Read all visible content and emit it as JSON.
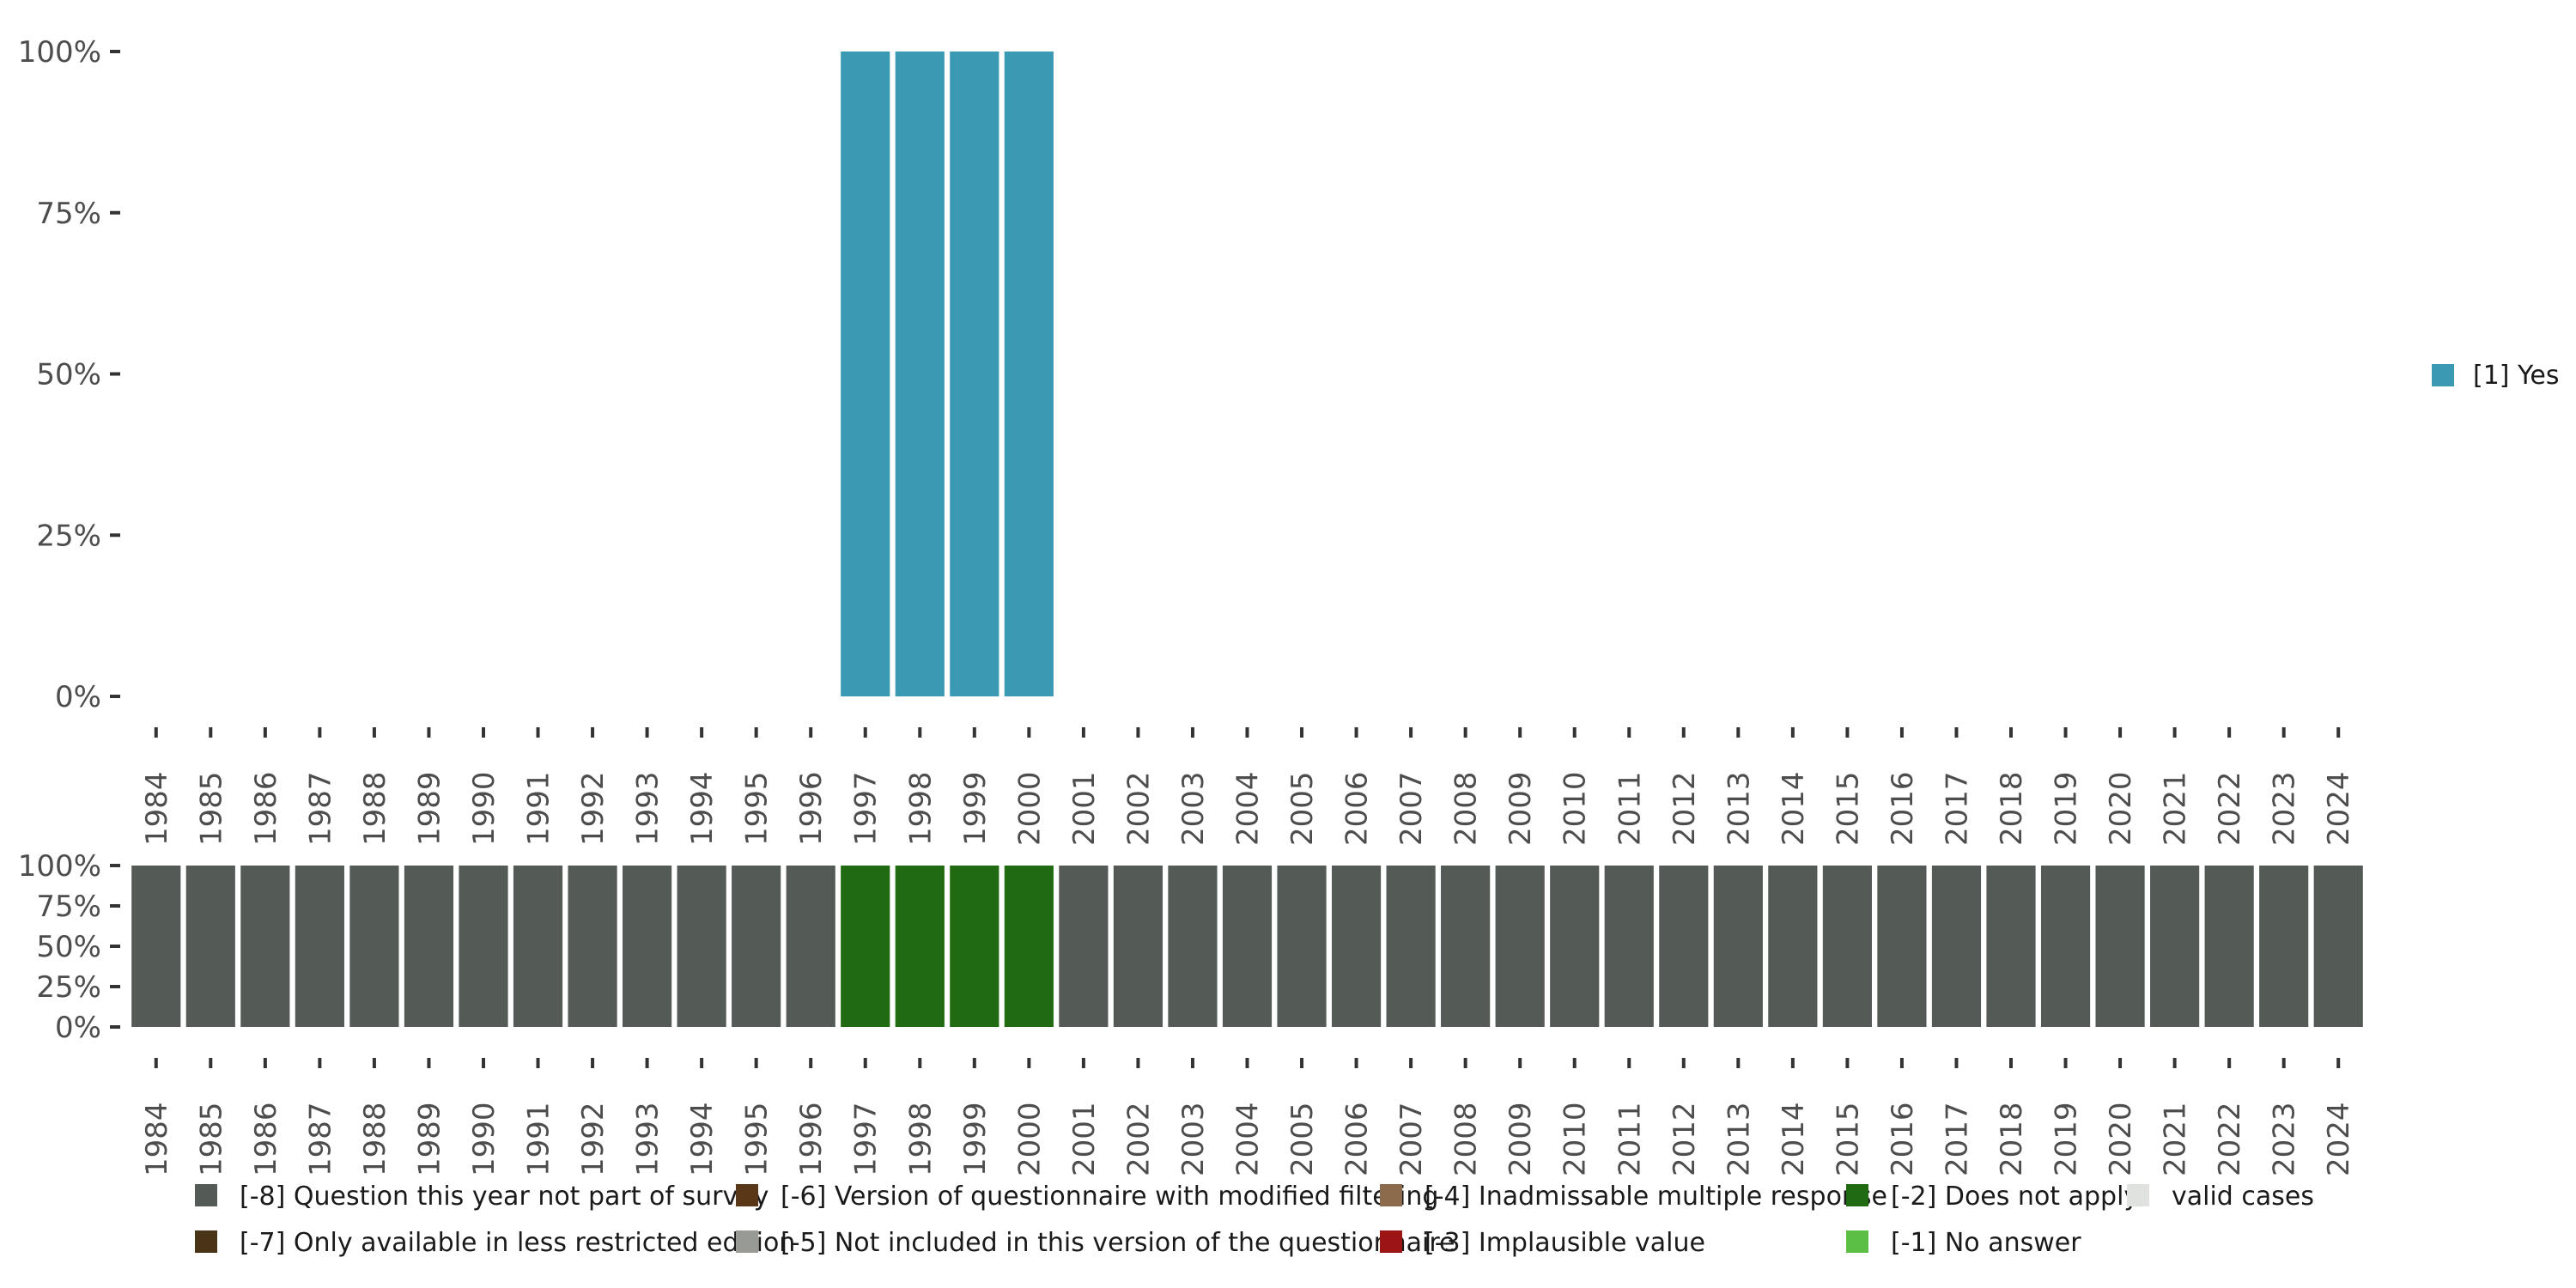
{
  "chart_data": [
    {
      "name": "response-distribution",
      "type": "bar",
      "stacked": true,
      "categories": [
        "1984",
        "1985",
        "1986",
        "1987",
        "1988",
        "1989",
        "1990",
        "1991",
        "1992",
        "1993",
        "1994",
        "1995",
        "1996",
        "1997",
        "1998",
        "1999",
        "2000",
        "2001",
        "2002",
        "2003",
        "2004",
        "2005",
        "2006",
        "2007",
        "2008",
        "2009",
        "2010",
        "2011",
        "2012",
        "2013",
        "2014",
        "2015",
        "2016",
        "2017",
        "2018",
        "2019",
        "2020",
        "2021",
        "2022",
        "2023",
        "2024"
      ],
      "series": [
        {
          "name": "[1] Yes",
          "color": "#3a9ab3",
          "values": [
            0,
            0,
            0,
            0,
            0,
            0,
            0,
            0,
            0,
            0,
            0,
            0,
            0,
            100,
            100,
            100,
            100,
            0,
            0,
            0,
            0,
            0,
            0,
            0,
            0,
            0,
            0,
            0,
            0,
            0,
            0,
            0,
            0,
            0,
            0,
            0,
            0,
            0,
            0,
            0,
            0
          ]
        }
      ],
      "ylim": [
        0,
        100
      ],
      "yticks": [
        "0%",
        "25%",
        "50%",
        "75%",
        "100%"
      ],
      "ytick_values": [
        0,
        25,
        50,
        75,
        100
      ],
      "grid": false,
      "legend": {
        "position": "right",
        "entries": [
          {
            "label": "[1] Yes",
            "color": "#3a9ab3"
          }
        ]
      }
    },
    {
      "name": "missing-values",
      "type": "bar",
      "stacked": true,
      "categories": [
        "1984",
        "1985",
        "1986",
        "1987",
        "1988",
        "1989",
        "1990",
        "1991",
        "1992",
        "1993",
        "1994",
        "1995",
        "1996",
        "1997",
        "1998",
        "1999",
        "2000",
        "2001",
        "2002",
        "2003",
        "2004",
        "2005",
        "2006",
        "2007",
        "2008",
        "2009",
        "2010",
        "2011",
        "2012",
        "2013",
        "2014",
        "2015",
        "2016",
        "2017",
        "2018",
        "2019",
        "2020",
        "2021",
        "2022",
        "2023",
        "2024"
      ],
      "series": [
        {
          "name": "[-8] Question this year not part of survey",
          "color": "#545b56",
          "values": [
            100,
            100,
            100,
            100,
            100,
            100,
            100,
            100,
            100,
            100,
            100,
            100,
            100,
            0,
            0,
            0,
            0,
            100,
            100,
            100,
            100,
            100,
            100,
            100,
            100,
            100,
            100,
            100,
            100,
            100,
            100,
            100,
            100,
            100,
            100,
            100,
            100,
            100,
            100,
            100,
            100
          ]
        },
        {
          "name": "[-2] Does not apply",
          "color": "#206b12",
          "values": [
            0,
            0,
            0,
            0,
            0,
            0,
            0,
            0,
            0,
            0,
            0,
            0,
            0,
            100,
            100,
            100,
            100,
            0,
            0,
            0,
            0,
            0,
            0,
            0,
            0,
            0,
            0,
            0,
            0,
            0,
            0,
            0,
            0,
            0,
            0,
            0,
            0,
            0,
            0,
            0,
            0
          ]
        }
      ],
      "ylim": [
        0,
        100
      ],
      "yticks": [
        "0%",
        "25%",
        "50%",
        "75%",
        "100%"
      ],
      "ytick_values": [
        0,
        25,
        50,
        75,
        100
      ],
      "grid": false,
      "legend": {
        "position": "bottom",
        "entries": [
          {
            "label": "[-8] Question this year not part of survey",
            "color": "#545b56"
          },
          {
            "label": "[-7] Only available in less restricted edition",
            "color": "#4a3418"
          },
          {
            "label": "[-6] Version of questionnaire with modified filtering",
            "color": "#5a3716"
          },
          {
            "label": "[-5] Not included in this version of the questionnaire",
            "color": "#979a95"
          },
          {
            "label": "[-4] Inadmissable multiple response",
            "color": "#8b6b4b"
          },
          {
            "label": "[-3] Implausible value",
            "color": "#9c1414"
          },
          {
            "label": "[-2] Does not apply",
            "color": "#206b12"
          },
          {
            "label": "[-1] No answer",
            "color": "#5bbf45"
          },
          {
            "label": "valid cases",
            "color": "#e0e2df"
          }
        ]
      }
    }
  ]
}
